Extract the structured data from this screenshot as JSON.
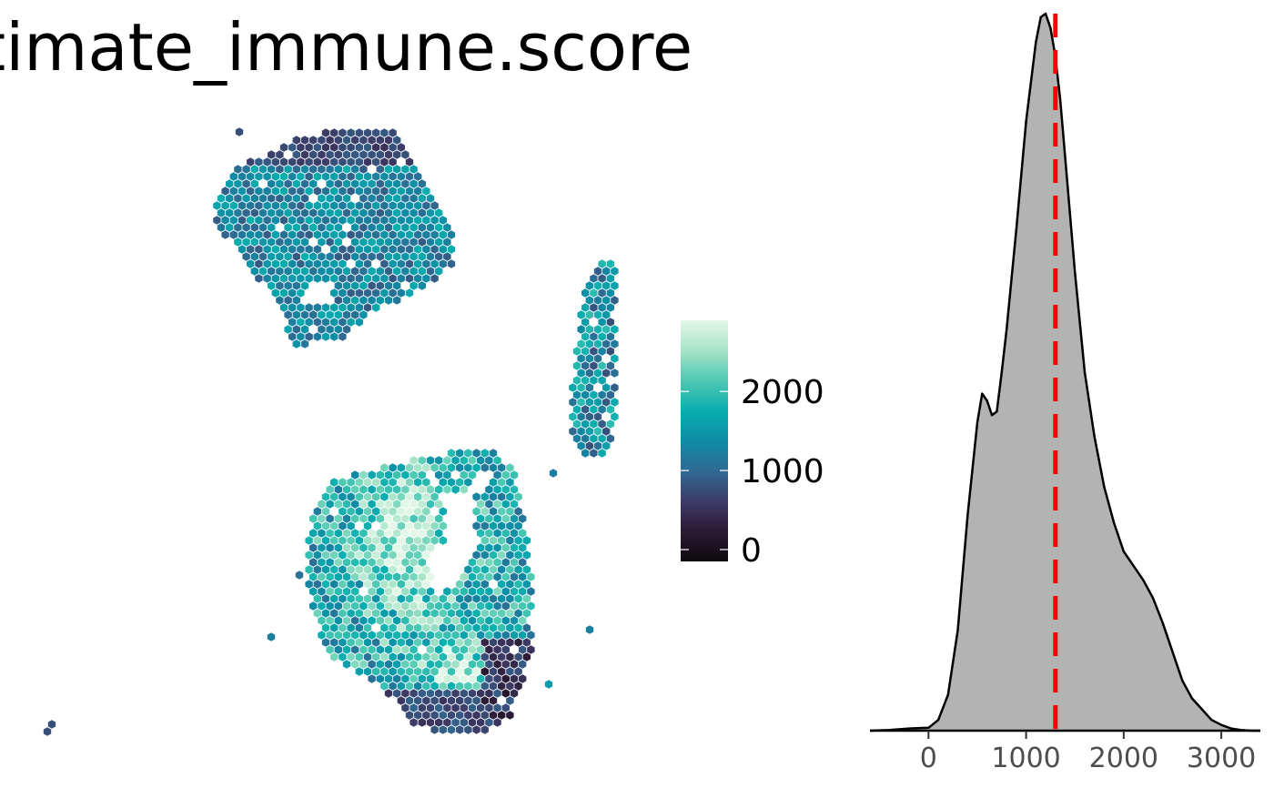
{
  "title": "timate_immune.score",
  "colors": {
    "gradient_stops": [
      "#0d0a0e",
      "#2b1a33",
      "#3d3b68",
      "#2f6a93",
      "#0f8ca6",
      "#09aeaf",
      "#4ec9b3",
      "#a7e3c8",
      "#e2f7e8"
    ],
    "density_fill": "#b3b3b3",
    "density_line": "#000000",
    "median_line": "#ff0000"
  },
  "chart_data": [
    {
      "type": "heatmap",
      "description_kind": "spatial spot plot",
      "legend": {
        "breaks": [
          0,
          1000,
          2000
        ],
        "labels": [
          "0",
          "1000",
          "2000"
        ],
        "range": [
          -150,
          2900
        ]
      }
    },
    {
      "type": "area",
      "xlabel": "",
      "ylabel": "",
      "xlim": [
        -600,
        3400
      ],
      "x_ticks": [
        0,
        1000,
        2000,
        3000
      ],
      "x_tick_labels": [
        "0",
        "1000",
        "2000",
        "3000"
      ],
      "median": 1300,
      "series": [
        {
          "x": [
            -600,
            -400,
            -200,
            0,
            100,
            200,
            300,
            400,
            500,
            550,
            600,
            650,
            700,
            750,
            800,
            900,
            1000,
            1100,
            1150,
            1200,
            1250,
            1300,
            1350,
            1400,
            1500,
            1600,
            1700,
            1800,
            1900,
            2000,
            2100,
            2200,
            2300,
            2400,
            2500,
            2600,
            2700,
            2800,
            2900,
            3000,
            3100,
            3200,
            3300,
            3400
          ],
          "y": [
            0.0,
            0.001,
            0.003,
            0.004,
            0.015,
            0.05,
            0.14,
            0.3,
            0.43,
            0.47,
            0.46,
            0.44,
            0.445,
            0.5,
            0.56,
            0.7,
            0.85,
            0.96,
            0.995,
            1.0,
            0.98,
            0.94,
            0.88,
            0.8,
            0.64,
            0.5,
            0.41,
            0.34,
            0.29,
            0.25,
            0.23,
            0.21,
            0.185,
            0.15,
            0.11,
            0.07,
            0.045,
            0.03,
            0.015,
            0.008,
            0.003,
            0.001,
            0.0,
            0.0
          ]
        }
      ]
    }
  ]
}
